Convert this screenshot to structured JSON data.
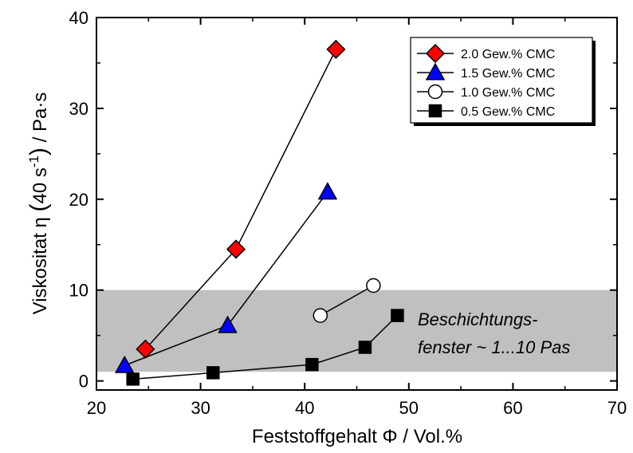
{
  "chart_data": {
    "type": "scatter",
    "xlabel": "Feststoffgehalt Φ / Vol.%",
    "ylabel": {
      "main": "Viskositat η ",
      "paren_open": "(",
      "inner": "40 s",
      "sup": "-1",
      "paren_close": ")",
      "suffix": " / Pa·s"
    },
    "xlim": [
      20,
      70
    ],
    "ylim": [
      -1,
      40
    ],
    "xticks": [
      20,
      30,
      40,
      50,
      60,
      70
    ],
    "yticks": [
      0,
      10,
      20,
      30,
      40
    ],
    "grid": false,
    "legend_position": "top-right",
    "shaded_band": {
      "y_from": 1,
      "y_to": 10,
      "color": "#c0c0c0"
    },
    "annotation": {
      "line1": "Beschichtungs-",
      "line2": "fenster ~ 1...10 Pas"
    },
    "series": [
      {
        "name": "2.0 Gew.% CMC",
        "marker": "diamond",
        "color": "#ff0000",
        "x": [
          24.7,
          33.4,
          43.0
        ],
        "y": [
          3.5,
          14.5,
          36.5
        ]
      },
      {
        "name": "1.5 Gew.% CMC",
        "marker": "triangle",
        "color": "#0000ff",
        "x": [
          22.7,
          32.6,
          42.2
        ],
        "y": [
          1.7,
          6.1,
          20.8
        ]
      },
      {
        "name": "1.0 Gew.% CMC",
        "marker": "circle",
        "color": "#ffffff",
        "x": [
          41.5,
          46.6
        ],
        "y": [
          7.2,
          10.5
        ]
      },
      {
        "name": "0.5 Gew.% CMC",
        "marker": "square",
        "color": "#000000",
        "x": [
          23.5,
          31.2,
          40.7,
          45.8,
          48.9
        ],
        "y": [
          0.2,
          0.9,
          1.8,
          3.7,
          7.2
        ]
      }
    ]
  }
}
